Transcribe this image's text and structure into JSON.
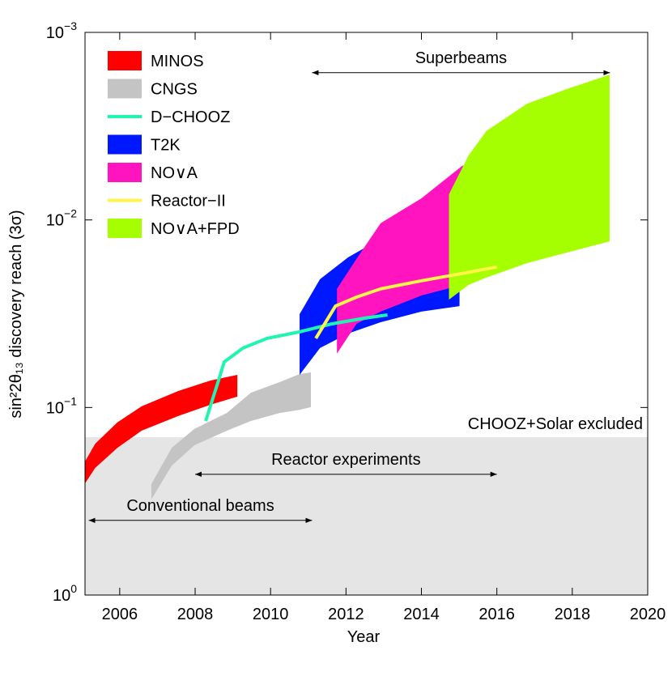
{
  "chart_data": {
    "type": "range-area",
    "x_label": "Year",
    "y_label": "sin²2θ₁₃ discovery reach (3σ)",
    "xlim": [
      2005.08,
      2020
    ],
    "xticks": [
      2006,
      2008,
      2010,
      2012,
      2014,
      2016,
      2018,
      2020
    ],
    "ylim": [
      1,
      0.001
    ],
    "y_log": true,
    "yticks": [
      {
        "value": 1,
        "label": "10",
        "exponent": "0"
      },
      {
        "value": 0.1,
        "label": "10",
        "exponent": "−1"
      },
      {
        "value": 0.01,
        "label": "10",
        "exponent": "−2"
      },
      {
        "value": 0.001,
        "label": "10",
        "exponent": "−3"
      }
    ],
    "legend": "top-left",
    "region": {
      "label": "CHOOZ+Solar excluded",
      "color": "#e5e5e5",
      "x": [
        2005.08,
        2020
      ],
      "y": [
        0.144,
        1
      ]
    },
    "series": [
      {
        "name": "MINOS",
        "kind": "band",
        "color": "#ff0000",
        "x": [
          2005.08,
          2005.35,
          2005.94,
          2006.58,
          2007.55,
          2008.41,
          2009.12
        ],
        "lower": [
          0.194,
          0.156,
          0.12,
          0.0986,
          0.0817,
          0.0718,
          0.067
        ],
        "upper": [
          0.254,
          0.21,
          0.164,
          0.133,
          0.111,
          0.0966,
          0.0875
        ]
      },
      {
        "name": "CNGS",
        "kind": "band",
        "color": "#c4c4c4",
        "x": [
          2006.84,
          2007.38,
          2007.98,
          2008.84,
          2009.48,
          2010.24,
          2010.77,
          2011.07
        ],
        "lower": [
          0.256,
          0.164,
          0.13,
          0.107,
          0.0833,
          0.0732,
          0.0663,
          0.065
        ],
        "upper": [
          0.309,
          0.204,
          0.159,
          0.133,
          0.118,
          0.107,
          0.103,
          0.0995
        ]
      },
      {
        "name": "D−CHOOZ",
        "kind": "line",
        "color": "#1ff5b0",
        "x": [
          2008.28,
          2008.45,
          2008.62,
          2008.77,
          2009.27,
          2009.91,
          2010.77,
          2011.63,
          2012.49,
          2013.1
        ],
        "values": [
          0.118,
          0.092,
          0.0718,
          0.0572,
          0.0482,
          0.0428,
          0.0395,
          0.0358,
          0.0334,
          0.0321
        ]
      },
      {
        "name": "T2K",
        "kind": "band",
        "color": "#0018ff",
        "x": [
          2010.77,
          2011.31,
          2012.06,
          2012.92,
          2014.0,
          2015.01
        ],
        "lower": [
          0.0318,
          0.0207,
          0.0158,
          0.0126,
          0.0106,
          0.00936
        ],
        "upper": [
          0.067,
          0.0482,
          0.0403,
          0.0351,
          0.0308,
          0.0288
        ]
      },
      {
        "name": "NO∨A",
        "kind": "band",
        "color": "#ff14c0",
        "x": [
          2011.76,
          2012.28,
          2012.92,
          2014.0,
          2015.08,
          2016.0
        ],
        "lower": [
          0.0233,
          0.0161,
          0.0104,
          0.00767,
          0.00515,
          0.00467
        ],
        "upper": [
          0.0516,
          0.0358,
          0.0308,
          0.0253,
          0.0222,
          0.0193
        ]
      },
      {
        "name": "Reactor−II",
        "kind": "line",
        "color": "#fff44a",
        "x": [
          2011.2,
          2011.72,
          2012.28,
          2012.92,
          2014.0,
          2015.08,
          2016.0
        ],
        "values": [
          0.0428,
          0.0288,
          0.0258,
          0.0233,
          0.0211,
          0.0193,
          0.0178
        ]
      },
      {
        "name": "NO∨A+FPD",
        "kind": "band",
        "color": "#a6ff00",
        "x": [
          2014.73,
          2015.25,
          2015.72,
          2016.8,
          2017.87,
          2018.99
        ],
        "lower": [
          0.0073,
          0.00453,
          0.00336,
          0.0024,
          0.002,
          0.00168
        ],
        "upper": [
          0.0266,
          0.0222,
          0.0203,
          0.017,
          0.0149,
          0.013
        ]
      }
    ],
    "annotations": [
      {
        "text": "Superbeams",
        "x": [
          2011.1,
          2019.0
        ],
        "y": 0.00164
      },
      {
        "text": "Reactor experiments",
        "x": [
          2008.0,
          2016.0
        ],
        "y": 0.227
      },
      {
        "text": "Conventional beams",
        "x": [
          2005.18,
          2011.1
        ],
        "y": 0.4
      }
    ]
  }
}
